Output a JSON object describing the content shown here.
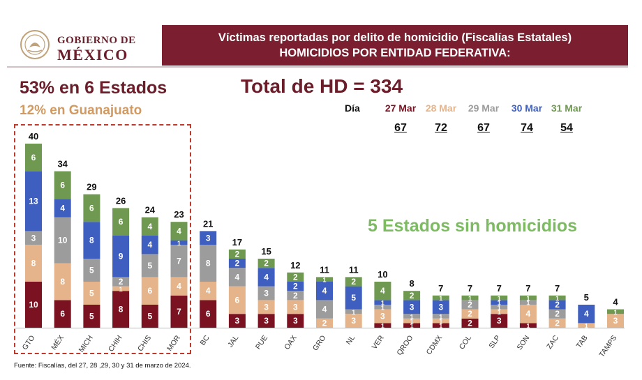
{
  "header": {
    "logo_line1": "GOBIERNO DE",
    "logo_line2": "MÉXICO",
    "title": "Víctimas reportadas por delito de homicidio (Fiscalías Estatales)",
    "subtitle": "HOMICIDIOS POR ENTIDAD FEDERATIVA:"
  },
  "highlights": {
    "top_states": "53% en 6 Estados",
    "guanajuato": "12% en Guanajuato",
    "total": "Total de HD = 334",
    "no_homicides": "5 Estados sin homicidios"
  },
  "daily": {
    "label": "Día",
    "days": [
      {
        "date": "27 Mar",
        "total": "67",
        "color": "#7a1222"
      },
      {
        "date": "28 Mar",
        "total": "72",
        "color": "#e6b48a"
      },
      {
        "date": "29 Mar",
        "total": "67",
        "color": "#9c9c9c"
      },
      {
        "date": "30 Mar",
        "total": "74",
        "color": "#3f5fc0"
      },
      {
        "date": "31 Mar",
        "total": "54",
        "color": "#6f9950"
      }
    ]
  },
  "footer": "Fuente: Fiscalías, del 27, 28 ,29, 30 y 31 de marzo de 2024.",
  "chart_data": {
    "type": "bar",
    "stacked": true,
    "categories": [
      "GTO",
      "MÉX",
      "MICH",
      "CHIH",
      "CHIS",
      "MOR",
      "BC",
      "JAL",
      "PUE",
      "OAX",
      "GRO",
      "NL",
      "VER",
      "QROO",
      "CDMX",
      "COL",
      "SLP",
      "SON",
      "ZAC",
      "TAB",
      "TAMPS"
    ],
    "totals": [
      40,
      34,
      29,
      26,
      24,
      23,
      21,
      17,
      15,
      12,
      11,
      11,
      10,
      8,
      7,
      7,
      7,
      7,
      7,
      5,
      4
    ],
    "series": [
      {
        "name": "27 Mar",
        "color": "#7a1222",
        "values": [
          10,
          6,
          5,
          8,
          5,
          7,
          6,
          3,
          3,
          3,
          0,
          0,
          1,
          1,
          1,
          2,
          3,
          1,
          0,
          0,
          0
        ]
      },
      {
        "name": "28 Mar",
        "color": "#e6b48a",
        "values": [
          8,
          8,
          5,
          1,
          6,
          4,
          4,
          6,
          3,
          3,
          2,
          3,
          3,
          1,
          1,
          2,
          1,
          4,
          2,
          1,
          3
        ]
      },
      {
        "name": "29 Mar",
        "color": "#9c9c9c",
        "values": [
          3,
          10,
          5,
          2,
          5,
          7,
          8,
          4,
          3,
          2,
          4,
          1,
          1,
          1,
          1,
          2,
          1,
          1,
          2,
          0,
          0
        ]
      },
      {
        "name": "30 Mar",
        "color": "#3f5fc0",
        "values": [
          13,
          4,
          8,
          9,
          4,
          1,
          3,
          2,
          4,
          2,
          4,
          5,
          1,
          3,
          3,
          0,
          1,
          0,
          2,
          4,
          0
        ]
      },
      {
        "name": "31 Mar",
        "color": "#6f9950",
        "values": [
          6,
          6,
          6,
          6,
          4,
          4,
          0,
          2,
          2,
          2,
          1,
          2,
          4,
          2,
          1,
          1,
          1,
          1,
          1,
          0,
          1
        ]
      }
    ],
    "ylim": [
      0,
      42
    ],
    "grid": false,
    "legend": "top-right"
  }
}
